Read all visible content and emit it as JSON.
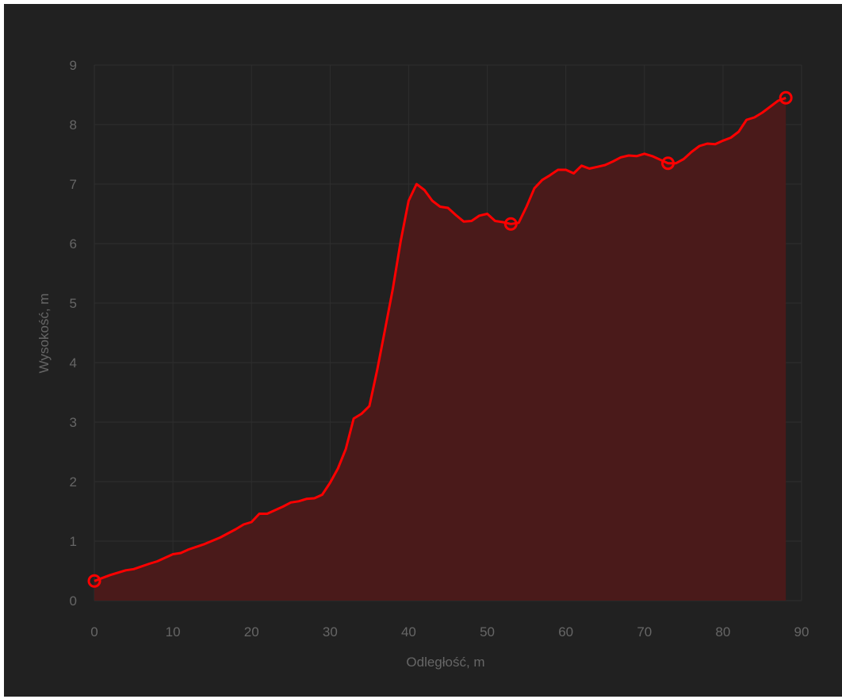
{
  "chart_data": {
    "type": "area",
    "xlabel": "Odległość, m",
    "ylabel": "Wysokość, m",
    "xlim": [
      0,
      90
    ],
    "ylim": [
      0,
      9
    ],
    "x_ticks": [
      0,
      10,
      20,
      30,
      40,
      50,
      60,
      70,
      80,
      90
    ],
    "y_ticks": [
      0,
      1,
      2,
      3,
      4,
      5,
      6,
      7,
      8,
      9
    ],
    "grid": true,
    "colors": {
      "line": "#ff0000",
      "fill": "#4a1a1a",
      "grid": "#2e2e2e",
      "text": "#666666",
      "background": "#212121"
    },
    "series": [
      {
        "x": [
          0,
          2,
          4,
          5,
          7,
          8,
          10,
          11,
          12,
          14,
          16,
          18,
          19,
          20,
          21,
          22,
          24,
          25,
          26,
          27,
          28,
          29,
          30,
          31,
          32,
          33,
          34,
          35,
          36,
          37,
          38,
          39,
          40,
          41,
          42,
          43,
          44,
          45,
          46,
          47,
          48,
          49,
          50,
          51,
          52,
          53,
          54,
          55,
          56,
          57,
          58,
          59,
          60,
          61,
          62,
          63,
          64,
          65,
          66,
          67,
          68,
          69,
          70,
          71,
          72,
          73,
          74,
          75,
          76,
          77,
          78,
          79,
          80,
          81,
          82,
          83,
          84,
          85,
          86,
          87,
          88
        ],
        "values": [
          0.33,
          0.43,
          0.51,
          0.53,
          0.62,
          0.66,
          0.78,
          0.8,
          0.86,
          0.95,
          1.06,
          1.2,
          1.28,
          1.32,
          1.46,
          1.46,
          1.58,
          1.65,
          1.67,
          1.71,
          1.72,
          1.78,
          1.98,
          2.22,
          2.55,
          3.06,
          3.14,
          3.27,
          3.88,
          4.56,
          5.25,
          6.05,
          6.72,
          7.0,
          6.9,
          6.72,
          6.62,
          6.6,
          6.48,
          6.37,
          6.38,
          6.47,
          6.5,
          6.38,
          6.36,
          6.33,
          6.35,
          6.62,
          6.93,
          7.07,
          7.15,
          7.24,
          7.24,
          7.18,
          7.31,
          7.26,
          7.29,
          7.32,
          7.38,
          7.45,
          7.48,
          7.47,
          7.51,
          7.47,
          7.41,
          7.35,
          7.35,
          7.42,
          7.54,
          7.64,
          7.68,
          7.67,
          7.73,
          7.78,
          7.88,
          8.08,
          8.12,
          8.2,
          8.3,
          8.4,
          8.45
        ]
      }
    ],
    "markers": [
      {
        "x": 0,
        "y": 0.33
      },
      {
        "x": 53,
        "y": 6.33
      },
      {
        "x": 73,
        "y": 7.35
      },
      {
        "x": 88,
        "y": 8.45
      }
    ]
  }
}
